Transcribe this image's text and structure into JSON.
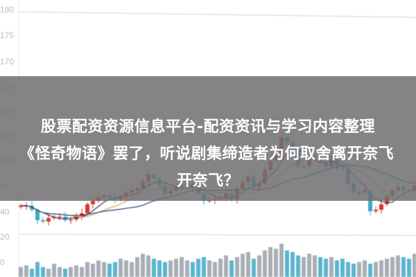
{
  "chart_data": {
    "type": "candlestick",
    "y_tick_labels": [
      "180",
      "175",
      "170",
      "125",
      "120",
      "105",
      "100",
      "60",
      "40",
      "20",
      "0"
    ],
    "close": [
      45.4,
      45.4,
      42.2,
      34.1,
      33.0,
      35.7,
      36.8,
      36.8,
      34.1,
      34.6,
      37.3,
      39.5,
      46.5,
      49.2,
      51.9,
      53.5,
      51.9,
      50.3,
      53.0,
      55.7,
      57.3,
      58.9,
      64.3,
      69.7,
      66.5,
      61.1,
      54.6,
      57.3,
      60.0,
      61.1,
      62.7,
      58.9,
      54.6,
      49.2,
      49.7,
      50.8,
      51.9,
      54.6,
      50.3,
      58.9,
      63.8,
      68.1,
      60.0,
      62.7,
      73.5,
      80.5,
      85.9,
      98.9,
      95.1,
      89.7,
      76.2,
      76.2,
      81.6,
      82.7,
      78.9,
      76.2,
      81.6,
      74.6,
      73.5,
      62.7,
      55.7,
      55.7,
      57.3,
      41.1,
      42.2,
      46.5,
      53.0,
      57.3,
      60.0,
      57.3,
      56.8,
      61.1
    ],
    "volume": [
      6,
      7,
      5,
      9,
      6,
      5,
      8,
      6,
      5,
      6,
      7,
      6,
      9,
      8,
      10,
      9,
      8,
      9,
      11,
      10,
      9,
      12,
      14,
      13,
      11,
      10,
      9,
      10,
      11,
      12,
      10,
      9,
      11,
      12,
      10,
      9,
      11,
      13,
      10,
      12,
      14,
      15,
      11,
      13,
      16,
      18,
      17,
      20,
      16,
      15,
      13,
      12,
      14,
      13,
      12,
      11,
      12,
      10,
      11,
      9,
      8,
      9,
      10,
      8,
      9,
      10,
      11,
      12,
      13,
      12,
      11,
      14
    ],
    "moving_averages": [
      5,
      10,
      20
    ],
    "colors": {
      "up": "#d8362c",
      "down": "#3ea8c8",
      "ma5": "#2f3b52",
      "ma10": "#d9a55a",
      "ma20": "#24426a",
      "grid": "#e3e6ea"
    }
  },
  "overlay": {
    "line1": "股票配资资源信息平台-配资资讯与学习内容整理",
    "line2": "《怪奇物语》罢了，听说剧集缔造者为何取舍离开奈飞",
    "line3": "开奈飞？"
  }
}
